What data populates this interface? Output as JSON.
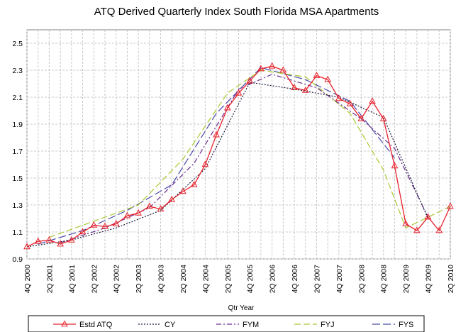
{
  "chart_data": {
    "type": "line",
    "title": "ATQ Derived Quarterly Index South Florida MSA Apartments",
    "xlabel": "Qtr Year",
    "ylabel": "",
    "ylim": [
      0.9,
      2.6
    ],
    "yticks": [
      "0.9",
      "1.1",
      "1.3",
      "1.5",
      "1.7",
      "1.9",
      "2.1",
      "2.3",
      "2.5"
    ],
    "grid": true,
    "legend_position": "bottom",
    "categories": [
      "4Q 2000",
      "1Q 2001",
      "2Q 2001",
      "3Q 2001",
      "4Q 2001",
      "1Q 2002",
      "2Q 2002",
      "3Q 2002",
      "4Q 2002",
      "1Q 2003",
      "2Q 2003",
      "3Q 2003",
      "4Q 2003",
      "1Q 2004",
      "2Q 2004",
      "3Q 2004",
      "4Q 2004",
      "1Q 2005",
      "2Q 2005",
      "3Q 2005",
      "4Q 2005",
      "1Q 2006",
      "2Q 2006",
      "3Q 2006",
      "4Q 2006",
      "1Q 2007",
      "2Q 2007",
      "3Q 2007",
      "4Q 2007",
      "1Q 2008",
      "2Q 2008",
      "3Q 2008",
      "4Q 2008",
      "1Q 2009",
      "2Q 2009",
      "3Q 2009",
      "4Q 2009",
      "1Q 2010",
      "2Q 2010"
    ],
    "xtick_labels": [
      "4Q 2000",
      "2Q 2001",
      "4Q 2001",
      "2Q 2002",
      "4Q 2002",
      "2Q 2003",
      "4Q 2003",
      "2Q 2004",
      "4Q 2004",
      "2Q 2005",
      "4Q 2005",
      "2Q 2006",
      "4Q 2006",
      "2Q 2007",
      "4Q 2007",
      "2Q 2008",
      "4Q 2008",
      "2Q 2009",
      "4Q 2009",
      "2Q 2010"
    ],
    "series": [
      {
        "name": "Estd ATQ",
        "color": "#e8202a",
        "dash": "",
        "marker": "triangle",
        "values": [
          0.99,
          1.03,
          1.04,
          1.01,
          1.04,
          1.1,
          1.15,
          1.14,
          1.16,
          1.22,
          1.24,
          1.29,
          1.27,
          1.34,
          1.4,
          1.45,
          1.6,
          1.82,
          2.02,
          2.13,
          2.22,
          2.31,
          2.33,
          2.3,
          2.17,
          2.15,
          2.26,
          2.23,
          2.09,
          2.05,
          1.94,
          2.07,
          1.94,
          1.59,
          1.16,
          1.11,
          1.21,
          1.11,
          1.29
        ]
      },
      {
        "name": "CY",
        "color": "#1a1a3a",
        "dash": "2,2",
        "marker": "",
        "values": [
          0.99,
          null,
          null,
          null,
          1.04,
          null,
          null,
          null,
          1.13,
          null,
          null,
          null,
          1.26,
          null,
          null,
          null,
          1.57,
          null,
          null,
          null,
          2.21,
          null,
          null,
          null,
          2.16,
          null,
          null,
          null,
          2.1,
          null,
          null,
          null,
          1.95,
          null,
          null,
          null,
          1.2,
          null,
          null
        ]
      },
      {
        "name": "FYM",
        "color": "#6a2b8f",
        "dash": "7,3,2,3",
        "marker": "",
        "values": [
          null,
          null,
          null,
          1.02,
          null,
          null,
          null,
          1.13,
          null,
          null,
          null,
          1.28,
          null,
          null,
          null,
          1.61,
          null,
          null,
          null,
          2.16,
          null,
          null,
          2.27,
          null,
          null,
          null,
          2.17,
          null,
          null,
          null,
          1.94,
          null,
          null,
          1.72,
          null,
          null,
          1.21,
          null,
          null
        ]
      },
      {
        "name": "FYJ",
        "color": "#a8c832",
        "dash": "9,4",
        "marker": "",
        "values": [
          null,
          null,
          1.06,
          null,
          null,
          null,
          1.18,
          null,
          null,
          null,
          1.3,
          null,
          null,
          null,
          1.64,
          null,
          null,
          null,
          2.13,
          null,
          null,
          2.3,
          null,
          null,
          null,
          2.25,
          null,
          null,
          null,
          1.98,
          null,
          null,
          1.56,
          null,
          1.13,
          null,
          null,
          null,
          1.29
        ]
      },
      {
        "name": "FYS",
        "color": "#4a4aa8",
        "dash": "11,4",
        "marker": "",
        "values": [
          null,
          1.01,
          null,
          null,
          null,
          1.11,
          null,
          null,
          null,
          1.26,
          null,
          null,
          null,
          1.45,
          null,
          null,
          null,
          1.98,
          null,
          null,
          null,
          2.32,
          null,
          null,
          null,
          2.23,
          null,
          null,
          null,
          2.07,
          null,
          null,
          null,
          1.65,
          null,
          null,
          null,
          null,
          null
        ]
      }
    ]
  }
}
